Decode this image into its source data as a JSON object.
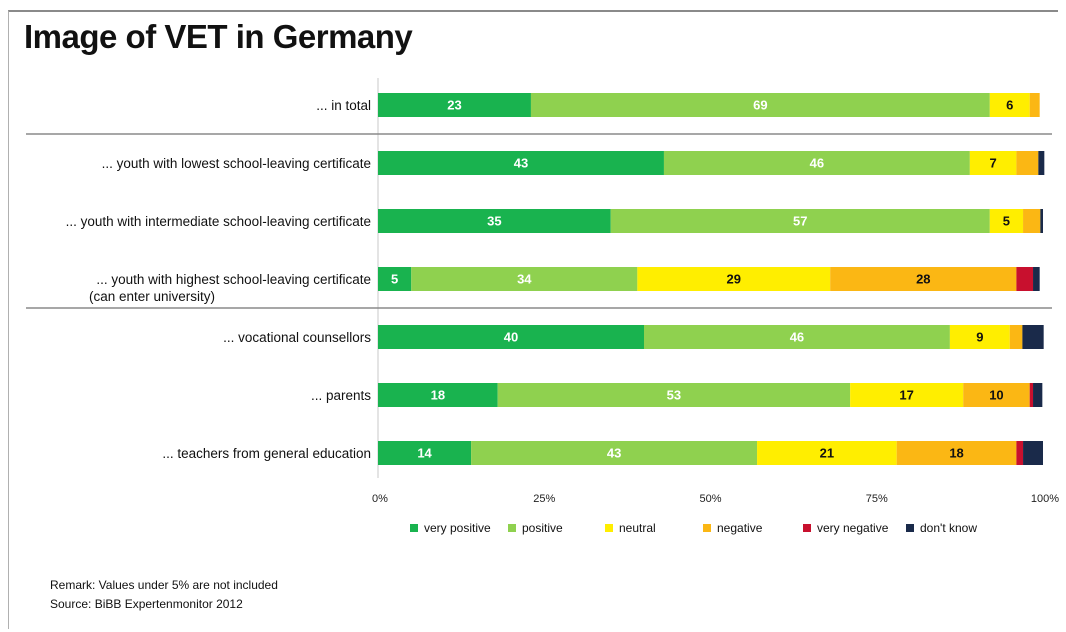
{
  "title": "Image of VET in Germany",
  "remark": "Remark: Values under 5% are not included",
  "source": "Source: BiBB Expertenmonitor 2012",
  "chart_data": {
    "type": "bar",
    "orientation": "horizontal",
    "stacked": "percent",
    "title": "Image of VET in Germany",
    "xlabel": "",
    "ylabel": "",
    "xlim": [
      0,
      100
    ],
    "xticks": [
      "0%",
      "25%",
      "50%",
      "75%",
      "100%"
    ],
    "grid": true,
    "legend_position": "bottom",
    "categories": [
      "... in total",
      "... youth with lowest school-leaving certificate",
      "... youth with intermediate school-leaving certificate",
      "... youth with highest school-leaving certificate (can enter university)",
      "... vocational counsellors",
      "... parents",
      "... teachers from general education"
    ],
    "category_lines": [
      [
        "... in total"
      ],
      [
        "... youth with lowest school-leaving certificate"
      ],
      [
        "... youth with intermediate school-leaving certificate"
      ],
      [
        "... youth with highest school-leaving certificate",
        "(can enter university)"
      ],
      [
        "... vocational counsellors"
      ],
      [
        "... parents"
      ],
      [
        "... teachers from general education"
      ]
    ],
    "group_separators_after": [
      0,
      3
    ],
    "series": [
      {
        "name": "very positive",
        "color": "#19b34f",
        "label_color": "#ffffff",
        "values": [
          23,
          43,
          35,
          5,
          40,
          18,
          14
        ]
      },
      {
        "name": "positive",
        "color": "#8fd14f",
        "label_color": "#ffffff",
        "values": [
          69,
          46,
          57,
          34,
          46,
          53,
          43
        ]
      },
      {
        "name": "neutral",
        "color": "#ffee00",
        "label_color": "#111111",
        "values": [
          6,
          7,
          5,
          29,
          9,
          17,
          21
        ]
      },
      {
        "name": "negative",
        "color": "#fbb714",
        "label_color": "#111111",
        "values": [
          1.5,
          3.3,
          2.6,
          28,
          1.9,
          10,
          18
        ]
      },
      {
        "name": "very negative",
        "color": "#c8102e",
        "label_color": "#ffffff",
        "values": [
          0,
          0,
          0,
          2.5,
          0,
          0.5,
          1
        ]
      },
      {
        "name": "don't know",
        "color": "#1a2a4a",
        "label_color": "#ffffff",
        "values": [
          0,
          0.9,
          0.4,
          1,
          3.2,
          1.4,
          3
        ]
      }
    ],
    "data_labels": [
      [
        "23",
        "69",
        "6",
        "",
        "",
        ""
      ],
      [
        "43",
        "46",
        "7",
        "",
        "",
        ""
      ],
      [
        "35",
        "57",
        "5",
        "",
        "",
        ""
      ],
      [
        "5",
        "34",
        "29",
        "28",
        "",
        ""
      ],
      [
        "40",
        "46",
        "9",
        "",
        "",
        ""
      ],
      [
        "18",
        "53",
        "17",
        "10",
        "",
        ""
      ],
      [
        "14",
        "43",
        "21",
        "18",
        "",
        ""
      ]
    ]
  }
}
